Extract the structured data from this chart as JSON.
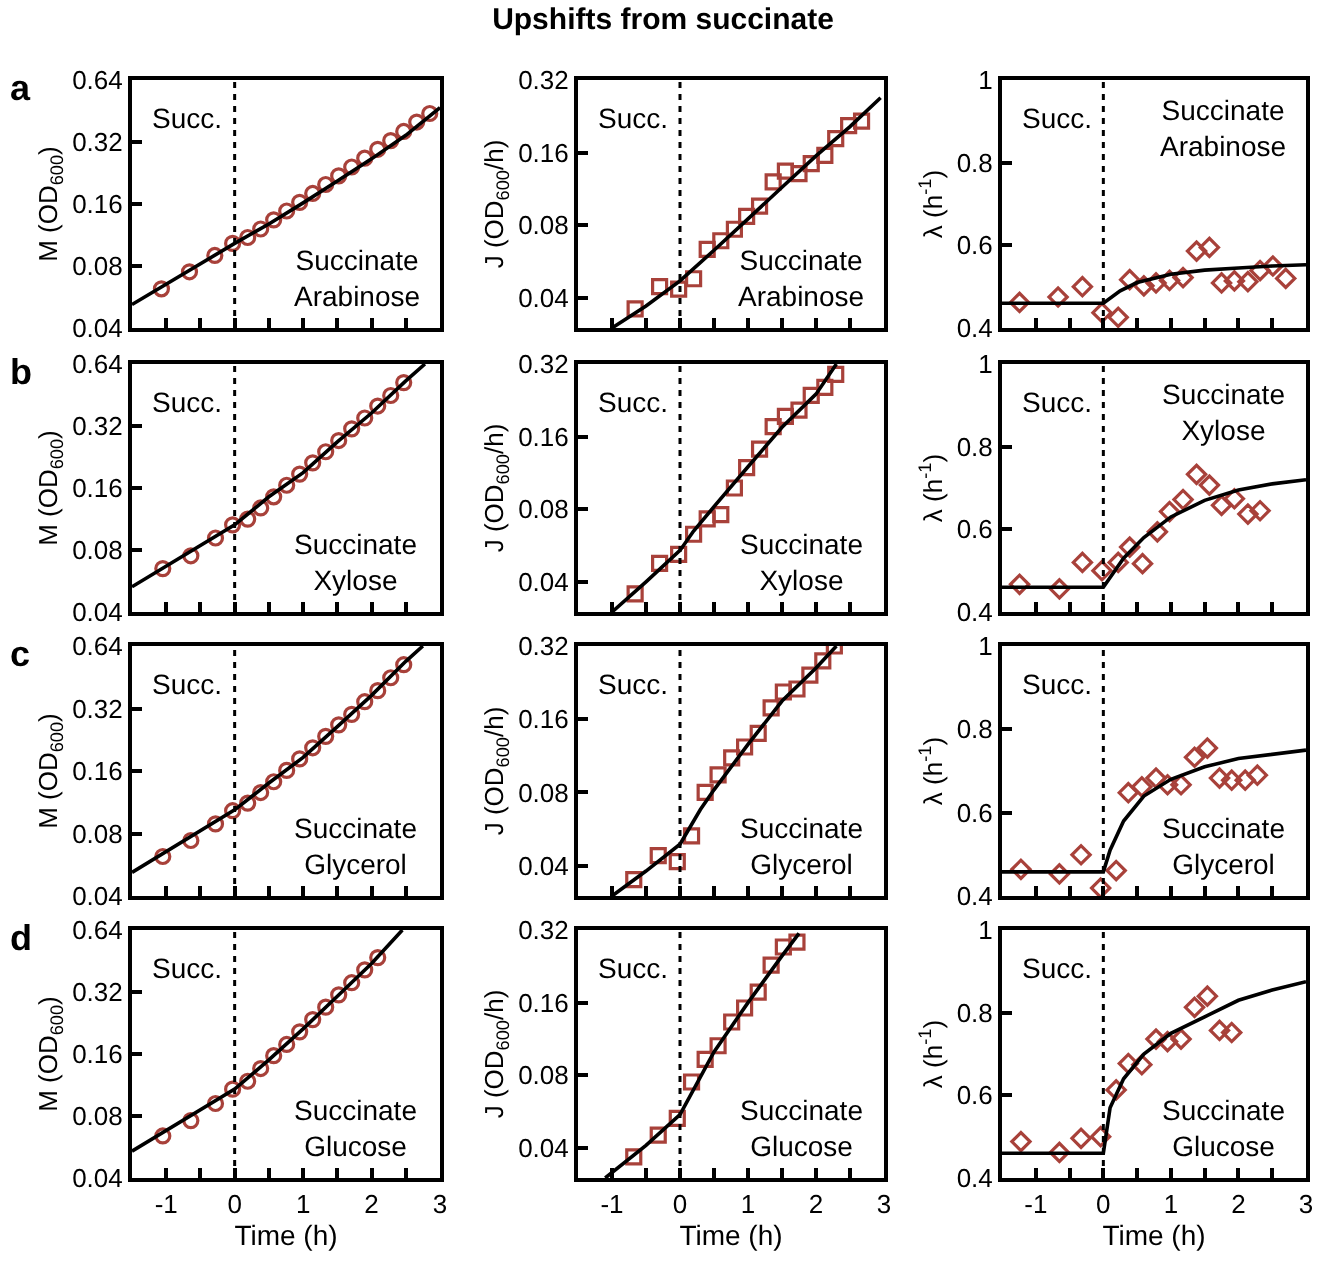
{
  "chart_data": [
    {
      "type": "scatter",
      "ylabel": "M (OD$_{600}$)",
      "annotations": [
        "a",
        "Succ.",
        "Succinate\nArabinose"
      ],
      "xlim": [
        -1.5,
        3
      ],
      "xticks": [
        -1,
        {
          "value": -0.5,
          "label": null
        },
        0,
        {
          "value": 0.5,
          "label": null
        },
        1,
        {
          "value": 1.5,
          "label": null
        },
        2,
        {
          "value": 2.5,
          "label": null
        },
        3
      ],
      "ylim": [
        0.04,
        0.64
      ],
      "yticks": [
        0.04,
        0.08,
        0.16,
        0.32,
        0.64
      ],
      "log": true,
      "tick_labels": "y",
      "ref_lines": [
        {
          "axis": "x",
          "value": 0,
          "color": "#000000",
          "line_style": "dotted"
        }
      ],
      "series": [
        {
          "color": "#a8413a",
          "marker": "circle",
          "x": [
            -1.07,
            -0.66,
            -0.29,
            -0.03,
            0.19,
            0.38,
            0.57,
            0.76,
            0.95,
            1.14,
            1.33,
            1.52,
            1.71,
            1.9,
            2.09,
            2.28,
            2.47,
            2.66,
            2.85
          ],
          "values": [
            0.062,
            0.075,
            0.09,
            0.103,
            0.11,
            0.121,
            0.134,
            0.148,
            0.163,
            0.18,
            0.199,
            0.219,
            0.242,
            0.267,
            0.295,
            0.325,
            0.36,
            0.4,
            0.44
          ]
        },
        {
          "type": "line",
          "color": "#000000",
          "marker": "none",
          "x": [
            -1.5,
            0,
            0.5,
            1,
            1.5,
            2,
            2.5,
            3
          ],
          "values": [
            0.052,
            0.103,
            0.128,
            0.162,
            0.207,
            0.265,
            0.345,
            0.47
          ]
        }
      ]
    },
    {
      "type": "scatter",
      "title": "Upshifts from succinate",
      "ylabel": "J (OD$_{600}$/h)",
      "annotations": [
        "Succ.",
        "Succinate\nArabinose"
      ],
      "xlim": [
        -1.5,
        3
      ],
      "xticks": [
        -1,
        {
          "value": -0.5,
          "label": null
        },
        0,
        {
          "value": 0.5,
          "label": null
        },
        1,
        {
          "value": 1.5,
          "label": null
        },
        2,
        {
          "value": 2.5,
          "label": null
        },
        3
      ],
      "ylim": [
        0.03,
        0.32
      ],
      "yticks": [
        0.04,
        0.08,
        0.16,
        0.32
      ],
      "log": true,
      "tick_labels": "y",
      "ref_lines": [
        {
          "axis": "x",
          "value": 0,
          "color": "#000000",
          "line_style": "dotted"
        }
      ],
      "series": [
        {
          "color": "#a8413a",
          "marker": "square",
          "x": [
            -0.66,
            -0.3,
            -0.02,
            0.2,
            0.4,
            0.6,
            0.8,
            0.98,
            1.17,
            1.37,
            1.55,
            1.75,
            1.93,
            2.13,
            2.29,
            2.48,
            2.67
          ],
          "values": [
            0.036,
            0.0445,
            0.0435,
            0.048,
            0.0635,
            0.069,
            0.077,
            0.087,
            0.096,
            0.121,
            0.134,
            0.131,
            0.144,
            0.156,
            0.183,
            0.207,
            0.216
          ]
        },
        {
          "type": "line",
          "color": "#000000",
          "marker": "none",
          "x": [
            -1,
            -0.5,
            0,
            0.5,
            1,
            1.5,
            2,
            2.5,
            2.95
          ],
          "values": [
            0.03,
            0.037,
            0.047,
            0.063,
            0.085,
            0.115,
            0.155,
            0.205,
            0.27
          ]
        }
      ]
    },
    {
      "type": "scatter",
      "ylabel": "λ (h$^{-1}$)",
      "annotations": [
        "Succ.",
        "Succinate\nArabinose"
      ],
      "xlim": [
        -1.5,
        3
      ],
      "xticks": [
        -1,
        {
          "value": -0.5,
          "label": null
        },
        0,
        {
          "value": 0.5,
          "label": null
        },
        1,
        {
          "value": 1.5,
          "label": null
        },
        2,
        {
          "value": 2.5,
          "label": null
        },
        3
      ],
      "ylim": [
        0.4,
        1
      ],
      "yticks": [
        0.4,
        0.6,
        0.8,
        1
      ],
      "tick_labels": "y",
      "ref_lines": [
        {
          "axis": "x",
          "value": 0,
          "color": "#000000",
          "line_style": "dotted"
        }
      ],
      "series": [
        {
          "color": "#a8413a",
          "marker": "diamond",
          "x": [
            -1.24,
            -0.67,
            -0.31,
            -0.02,
            0.22,
            0.39,
            0.6,
            0.78,
            0.98,
            1.18,
            1.38,
            1.57,
            1.75,
            1.94,
            2.14,
            2.32,
            2.51,
            2.7
          ],
          "values": [
            0.462,
            0.475,
            0.5,
            0.437,
            0.426,
            0.517,
            0.502,
            0.509,
            0.515,
            0.522,
            0.586,
            0.595,
            0.509,
            0.514,
            0.512,
            0.539,
            0.55,
            0.52
          ]
        },
        {
          "type": "line",
          "color": "#000000",
          "marker": "none",
          "x": [
            -1.5,
            0,
            0.25,
            0.5,
            1,
            1.5,
            2,
            2.5,
            3
          ],
          "values": [
            0.46,
            0.46,
            0.49,
            0.51,
            0.53,
            0.54,
            0.545,
            0.55,
            0.553
          ]
        }
      ]
    },
    {
      "type": "scatter",
      "ylabel": "M (OD$_{600}$)",
      "annotations": [
        "b",
        "Succ.",
        "Succinate\nXylose"
      ],
      "xlim": [
        -1.5,
        3
      ],
      "xticks": [
        -1,
        {
          "value": -0.5,
          "label": null
        },
        0,
        {
          "value": 0.5,
          "label": null
        },
        1,
        {
          "value": 1.5,
          "label": null
        },
        2,
        {
          "value": 2.5,
          "label": null
        },
        3
      ],
      "ylim": [
        0.04,
        0.64
      ],
      "yticks": [
        0.04,
        0.08,
        0.16,
        0.32,
        0.64
      ],
      "log": true,
      "tick_labels": "y",
      "ref_lines": [
        {
          "axis": "x",
          "value": 0,
          "color": "#000000",
          "line_style": "dotted"
        }
      ],
      "series": [
        {
          "color": "#a8413a",
          "marker": "circle",
          "x": [
            -1.05,
            -0.64,
            -0.28,
            -0.03,
            0.19,
            0.38,
            0.57,
            0.76,
            0.95,
            1.14,
            1.33,
            1.52,
            1.71,
            1.9,
            2.09,
            2.28,
            2.47
          ],
          "values": [
            0.065,
            0.075,
            0.0915,
            0.106,
            0.113,
            0.128,
            0.145,
            0.165,
            0.187,
            0.212,
            0.24,
            0.272,
            0.31,
            0.35,
            0.4,
            0.45,
            0.52
          ]
        },
        {
          "type": "line",
          "color": "#000000",
          "marker": "none",
          "x": [
            -1.5,
            0,
            0.5,
            1,
            1.5,
            2,
            2.5,
            2.78
          ],
          "values": [
            0.053,
            0.106,
            0.145,
            0.19,
            0.268,
            0.37,
            0.53,
            0.64
          ]
        }
      ]
    },
    {
      "type": "scatter",
      "ylabel": "J (OD$_{600}$/h)",
      "annotations": [
        "Succ.",
        "Succinate\nXylose"
      ],
      "xlim": [
        -1.5,
        3
      ],
      "xticks": [
        -1,
        {
          "value": -0.5,
          "label": null
        },
        0,
        {
          "value": 0.5,
          "label": null
        },
        1,
        {
          "value": 1.5,
          "label": null
        },
        2,
        {
          "value": 2.5,
          "label": null
        },
        3
      ],
      "ylim": [
        0.03,
        0.32
      ],
      "yticks": [
        0.04,
        0.08,
        0.16,
        0.32
      ],
      "log": true,
      "tick_labels": "y",
      "ref_lines": [
        {
          "axis": "x",
          "value": 0,
          "color": "#000000",
          "line_style": "dotted"
        }
      ],
      "series": [
        {
          "color": "#a8413a",
          "marker": "square",
          "x": [
            -0.66,
            -0.3,
            -0.02,
            0.2,
            0.4,
            0.6,
            0.8,
            0.98,
            1.17,
            1.37,
            1.55,
            1.75,
            1.93,
            2.13,
            2.29
          ],
          "values": [
            0.0357,
            0.0477,
            0.052,
            0.063,
            0.073,
            0.076,
            0.098,
            0.119,
            0.142,
            0.176,
            0.194,
            0.206,
            0.237,
            0.256,
            0.29
          ]
        },
        {
          "type": "line",
          "color": "#000000",
          "marker": "none",
          "x": [
            -1,
            -0.5,
            0,
            0.2,
            0.5,
            1,
            1.5,
            2,
            2.3
          ],
          "values": [
            0.03,
            0.04,
            0.054,
            0.065,
            0.082,
            0.12,
            0.175,
            0.24,
            0.32
          ]
        }
      ]
    },
    {
      "type": "scatter",
      "ylabel": "λ (h$^{-1}$)",
      "annotations": [
        "Succ.",
        "Succinate\nXylose"
      ],
      "xlim": [
        -1.5,
        3
      ],
      "xticks": [
        -1,
        {
          "value": -0.5,
          "label": null
        },
        0,
        {
          "value": 0.5,
          "label": null
        },
        1,
        {
          "value": 1.5,
          "label": null
        },
        2,
        {
          "value": 2.5,
          "label": null
        },
        3
      ],
      "ylim": [
        0.4,
        1
      ],
      "yticks": [
        0.4,
        0.6,
        0.8,
        1
      ],
      "tick_labels": "y",
      "ref_lines": [
        {
          "axis": "x",
          "value": 0,
          "color": "#000000",
          "line_style": "dotted"
        }
      ],
      "series": [
        {
          "color": "#a8413a",
          "marker": "diamond",
          "x": [
            -1.24,
            -0.65,
            -0.31,
            -0.02,
            0.22,
            0.39,
            0.58,
            0.8,
            0.98,
            1.18,
            1.38,
            1.57,
            1.75,
            1.94,
            2.14,
            2.32
          ],
          "values": [
            0.467,
            0.456,
            0.52,
            0.5,
            0.52,
            0.557,
            0.517,
            0.594,
            0.643,
            0.672,
            0.733,
            0.707,
            0.658,
            0.674,
            0.637,
            0.645
          ]
        },
        {
          "type": "line",
          "color": "#000000",
          "marker": "none",
          "x": [
            -1.5,
            0,
            0.3,
            0.6,
            1,
            1.5,
            2,
            2.5,
            3
          ],
          "values": [
            0.46,
            0.46,
            0.53,
            0.58,
            0.63,
            0.67,
            0.695,
            0.71,
            0.72
          ]
        }
      ]
    },
    {
      "type": "scatter",
      "ylabel": "M (OD$_{600}$)",
      "annotations": [
        "c",
        "Succ.",
        "Succinate\nGlycerol"
      ],
      "xlim": [
        -1.5,
        3
      ],
      "xticks": [
        -1,
        {
          "value": -0.5,
          "label": null
        },
        0,
        {
          "value": 0.5,
          "label": null
        },
        1,
        {
          "value": 1.5,
          "label": null
        },
        2,
        {
          "value": 2.5,
          "label": null
        },
        3
      ],
      "ylim": [
        0.04,
        0.64
      ],
      "yticks": [
        0.04,
        0.08,
        0.16,
        0.32,
        0.64
      ],
      "log": true,
      "tick_labels": "y",
      "ref_lines": [
        {
          "axis": "x",
          "value": 0,
          "color": "#000000",
          "line_style": "dotted"
        }
      ],
      "series": [
        {
          "color": "#a8413a",
          "marker": "circle",
          "x": [
            -1.05,
            -0.64,
            -0.28,
            -0.03,
            0.19,
            0.38,
            0.57,
            0.76,
            0.95,
            1.14,
            1.33,
            1.52,
            1.71,
            1.9,
            2.09,
            2.28,
            2.47
          ],
          "values": [
            0.062,
            0.074,
            0.089,
            0.103,
            0.112,
            0.126,
            0.142,
            0.161,
            0.183,
            0.207,
            0.235,
            0.267,
            0.3,
            0.345,
            0.39,
            0.45,
            0.52
          ]
        },
        {
          "type": "line",
          "color": "#000000",
          "marker": "none",
          "x": [
            -1.5,
            0,
            0.5,
            1,
            1.5,
            2,
            2.5,
            2.75
          ],
          "values": [
            0.052,
            0.104,
            0.14,
            0.186,
            0.262,
            0.37,
            0.54,
            0.64
          ]
        }
      ]
    },
    {
      "type": "scatter",
      "ylabel": "J (OD$_{600}$/h)",
      "annotations": [
        "Succ.",
        "Succinate\nGlycerol"
      ],
      "xlim": [
        -1.5,
        3
      ],
      "xticks": [
        -1,
        {
          "value": -0.5,
          "label": null
        },
        0,
        {
          "value": 0.5,
          "label": null
        },
        1,
        {
          "value": 1.5,
          "label": null
        },
        2,
        {
          "value": 2.5,
          "label": null
        },
        3
      ],
      "ylim": [
        0.03,
        0.32
      ],
      "yticks": [
        0.04,
        0.08,
        0.16,
        0.32
      ],
      "log": true,
      "tick_labels": "y",
      "ref_lines": [
        {
          "axis": "x",
          "value": 0,
          "color": "#000000",
          "line_style": "dotted"
        }
      ],
      "series": [
        {
          "color": "#a8413a",
          "marker": "square",
          "x": [
            -0.68,
            -0.32,
            -0.04,
            0.17,
            0.37,
            0.56,
            0.76,
            0.95,
            1.15,
            1.34,
            1.52,
            1.72,
            1.91,
            2.1,
            2.27
          ],
          "values": [
            0.035,
            0.044,
            0.0415,
            0.053,
            0.08,
            0.0945,
            0.111,
            0.123,
            0.14,
            0.178,
            0.207,
            0.213,
            0.243,
            0.278,
            0.32
          ]
        },
        {
          "type": "line",
          "color": "#000000",
          "marker": "none",
          "x": [
            -1,
            -0.5,
            0,
            0.3,
            0.5,
            1,
            1.5,
            2,
            2.3
          ],
          "values": [
            0.03,
            0.038,
            0.049,
            0.068,
            0.082,
            0.126,
            0.19,
            0.26,
            0.32
          ]
        }
      ]
    },
    {
      "type": "scatter",
      "ylabel": "λ (h$^{-1}$)",
      "annotations": [
        "Succ.",
        "Succinate\nGlycerol"
      ],
      "xlim": [
        -1.5,
        3
      ],
      "xticks": [
        -1,
        {
          "value": -0.5,
          "label": null
        },
        0,
        {
          "value": 0.5,
          "label": null
        },
        1,
        {
          "value": 1.5,
          "label": null
        },
        2,
        {
          "value": 2.5,
          "label": null
        },
        3
      ],
      "ylim": [
        0.4,
        1
      ],
      "yticks": [
        0.4,
        0.6,
        0.8,
        1
      ],
      "tick_labels": "y",
      "ref_lines": [
        {
          "axis": "x",
          "value": 0,
          "color": "#000000",
          "line_style": "dotted"
        }
      ],
      "series": [
        {
          "color": "#a8413a",
          "marker": "diamond",
          "x": [
            -1.22,
            -0.65,
            -0.33,
            -0.04,
            0.19,
            0.37,
            0.57,
            0.78,
            0.95,
            1.15,
            1.35,
            1.54,
            1.72,
            1.9,
            2.1,
            2.28
          ],
          "values": [
            0.464,
            0.453,
            0.499,
            0.419,
            0.461,
            0.648,
            0.662,
            0.683,
            0.667,
            0.667,
            0.733,
            0.755,
            0.683,
            0.678,
            0.678,
            0.69
          ]
        },
        {
          "type": "line",
          "color": "#000000",
          "marker": "none",
          "x": [
            -1.5,
            0,
            0.1,
            0.3,
            0.6,
            1,
            1.5,
            2,
            3
          ],
          "values": [
            0.458,
            0.458,
            0.51,
            0.58,
            0.64,
            0.68,
            0.71,
            0.73,
            0.75
          ]
        }
      ]
    },
    {
      "type": "scatter",
      "ylabel": "M (OD$_{600}$)",
      "xlabel": "Time (h)",
      "annotations": [
        "d",
        "Succ.",
        "Succinate\nGlucose"
      ],
      "xlim": [
        -1.5,
        3
      ],
      "xticks": [
        -1,
        {
          "value": -0.5,
          "label": null
        },
        0,
        {
          "value": 0.5,
          "label": null
        },
        1,
        {
          "value": 1.5,
          "label": null
        },
        2,
        {
          "value": 2.5,
          "label": null
        },
        3
      ],
      "ylim": [
        0.04,
        0.64
      ],
      "yticks": [
        0.04,
        0.08,
        0.16,
        0.32,
        0.64
      ],
      "log": true,
      "ref_lines": [
        {
          "axis": "x",
          "value": 0,
          "color": "#000000",
          "line_style": "dotted"
        }
      ],
      "series": [
        {
          "color": "#a8413a",
          "marker": "circle",
          "x": [
            -1.05,
            -0.64,
            -0.28,
            -0.03,
            0.19,
            0.38,
            0.57,
            0.76,
            0.95,
            1.14,
            1.33,
            1.52,
            1.71,
            1.9,
            2.09
          ],
          "values": [
            0.064,
            0.076,
            0.092,
            0.108,
            0.118,
            0.136,
            0.157,
            0.178,
            0.205,
            0.235,
            0.27,
            0.31,
            0.355,
            0.41,
            0.47
          ]
        },
        {
          "type": "line",
          "color": "#000000",
          "marker": "none",
          "x": [
            -1.5,
            0,
            0.5,
            1,
            1.5,
            2,
            2.45
          ],
          "values": [
            0.054,
            0.108,
            0.15,
            0.212,
            0.305,
            0.44,
            0.64
          ]
        }
      ]
    },
    {
      "type": "scatter",
      "ylabel": "J (OD$_{600}$/h)",
      "xlabel": "Time (h)",
      "annotations": [
        "Succ.",
        "Succinate\nGlucose"
      ],
      "xlim": [
        -1.5,
        3
      ],
      "xticks": [
        -1,
        {
          "value": -0.5,
          "label": null
        },
        0,
        {
          "value": 0.5,
          "label": null
        },
        1,
        {
          "value": 1.5,
          "label": null
        },
        2,
        {
          "value": 2.5,
          "label": null
        },
        3
      ],
      "ylim": [
        0.03,
        0.32
      ],
      "yticks": [
        0.04,
        0.08,
        0.16,
        0.32
      ],
      "log": true,
      "ref_lines": [
        {
          "axis": "x",
          "value": 0,
          "color": "#000000",
          "line_style": "dotted"
        }
      ],
      "series": [
        {
          "color": "#a8413a",
          "marker": "square",
          "x": [
            -0.68,
            -0.32,
            -0.04,
            0.17,
            0.37,
            0.56,
            0.76,
            0.95,
            1.15,
            1.34,
            1.52,
            1.72
          ],
          "values": [
            0.0367,
            0.0452,
            0.053,
            0.075,
            0.093,
            0.106,
            0.133,
            0.152,
            0.177,
            0.229,
            0.272,
            0.285
          ]
        },
        {
          "type": "line",
          "color": "#000000",
          "marker": "none",
          "x": [
            -1.1,
            -0.5,
            0,
            0.5,
            1,
            1.5,
            1.75
          ],
          "values": [
            0.03,
            0.041,
            0.055,
            0.1,
            0.16,
            0.25,
            0.31
          ]
        }
      ]
    },
    {
      "type": "scatter",
      "ylabel": "λ (h$^{-1}$)",
      "xlabel": "Time (h)",
      "annotations": [
        "Succ.",
        "Succinate\nGlucose"
      ],
      "xlim": [
        -1.5,
        3
      ],
      "xticks": [
        -1,
        {
          "value": -0.5,
          "label": null
        },
        0,
        {
          "value": 0.5,
          "label": null
        },
        1,
        {
          "value": 1.5,
          "label": null
        },
        2,
        {
          "value": 2.5,
          "label": null
        },
        3
      ],
      "ylim": [
        0.4,
        1
      ],
      "yticks": [
        0.4,
        0.6,
        0.8,
        1
      ],
      "ref_lines": [
        {
          "axis": "x",
          "value": 0,
          "color": "#000000",
          "line_style": "dotted"
        }
      ],
      "series": [
        {
          "color": "#a8413a",
          "marker": "diamond",
          "x": [
            -1.22,
            -0.65,
            -0.33,
            -0.04,
            0.19,
            0.37,
            0.57,
            0.78,
            0.95,
            1.15,
            1.35,
            1.54,
            1.72,
            1.9
          ],
          "values": [
            0.488,
            0.462,
            0.496,
            0.5,
            0.613,
            0.677,
            0.674,
            0.736,
            0.73,
            0.736,
            0.813,
            0.84,
            0.757,
            0.752
          ]
        },
        {
          "type": "line",
          "color": "#000000",
          "marker": "none",
          "x": [
            -1.5,
            0,
            0.1,
            0.3,
            0.6,
            1,
            1.5,
            2,
            2.5,
            3
          ],
          "values": [
            0.46,
            0.46,
            0.57,
            0.64,
            0.7,
            0.75,
            0.79,
            0.83,
            0.855,
            0.875
          ]
        }
      ]
    }
  ]
}
